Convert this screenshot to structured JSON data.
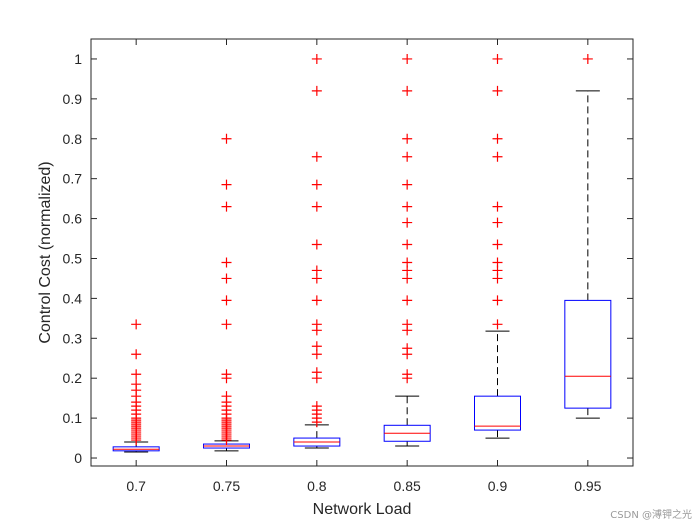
{
  "chart_data": {
    "type": "box",
    "xlabel": "Network Load",
    "ylabel": "Control Cost (normalized)",
    "categories": [
      "0.7",
      "0.75",
      "0.8",
      "0.85",
      "0.9",
      "0.95"
    ],
    "ylim": [
      -0.02,
      1.05
    ],
    "yticks": [
      0,
      0.1,
      0.2,
      0.3,
      0.4,
      0.5,
      0.6,
      0.7,
      0.8,
      0.9,
      1
    ],
    "ytick_labels": [
      "0",
      "0.1",
      "0.2",
      "0.3",
      "0.4",
      "0.5",
      "0.6",
      "0.7",
      "0.8",
      "0.9",
      "1"
    ],
    "grid": false,
    "boxes": [
      {
        "category": "0.7",
        "q1": 0.018,
        "median": 0.022,
        "q3": 0.028,
        "whisker_low": 0.015,
        "whisker_high": 0.04,
        "outliers": [
          0.045,
          0.05,
          0.055,
          0.06,
          0.065,
          0.07,
          0.075,
          0.08,
          0.085,
          0.09,
          0.095,
          0.1,
          0.11,
          0.12,
          0.13,
          0.14,
          0.155,
          0.17,
          0.185,
          0.21,
          0.26,
          0.335
        ]
      },
      {
        "category": "0.75",
        "q1": 0.025,
        "median": 0.03,
        "q3": 0.035,
        "whisker_low": 0.018,
        "whisker_high": 0.043,
        "outliers": [
          0.045,
          0.05,
          0.055,
          0.06,
          0.065,
          0.07,
          0.075,
          0.08,
          0.085,
          0.09,
          0.095,
          0.1,
          0.11,
          0.12,
          0.13,
          0.14,
          0.155,
          0.2,
          0.21,
          0.335,
          0.395,
          0.45,
          0.49,
          0.63,
          0.685,
          0.8
        ]
      },
      {
        "category": "0.8",
        "q1": 0.03,
        "median": 0.04,
        "q3": 0.05,
        "whisker_low": 0.025,
        "whisker_high": 0.083,
        "outliers": [
          0.09,
          0.1,
          0.11,
          0.12,
          0.13,
          0.2,
          0.215,
          0.26,
          0.28,
          0.32,
          0.335,
          0.395,
          0.45,
          0.47,
          0.535,
          0.63,
          0.685,
          0.755,
          0.92,
          1.0
        ]
      },
      {
        "category": "0.85",
        "q1": 0.042,
        "median": 0.062,
        "q3": 0.082,
        "whisker_low": 0.03,
        "whisker_high": 0.155,
        "outliers": [
          0.2,
          0.21,
          0.26,
          0.275,
          0.32,
          0.335,
          0.395,
          0.45,
          0.47,
          0.49,
          0.535,
          0.59,
          0.63,
          0.685,
          0.755,
          0.8,
          0.92,
          1.0
        ]
      },
      {
        "category": "0.9",
        "q1": 0.07,
        "median": 0.08,
        "q3": 0.155,
        "whisker_low": 0.05,
        "whisker_high": 0.318,
        "outliers": [
          0.335,
          0.395,
          0.45,
          0.47,
          0.49,
          0.535,
          0.59,
          0.63,
          0.755,
          0.8,
          0.92,
          1.0
        ]
      },
      {
        "category": "0.95",
        "q1": 0.125,
        "median": 0.205,
        "q3": 0.395,
        "whisker_low": 0.1,
        "whisker_high": 0.92,
        "outliers": [
          1.0
        ]
      }
    ],
    "colors": {
      "box": "#0000ff",
      "median": "#ff0000",
      "outlier": "#ff0000",
      "whisker": "#000000",
      "axis": "#262626"
    }
  },
  "watermark": "CSDN @溥钾之光"
}
